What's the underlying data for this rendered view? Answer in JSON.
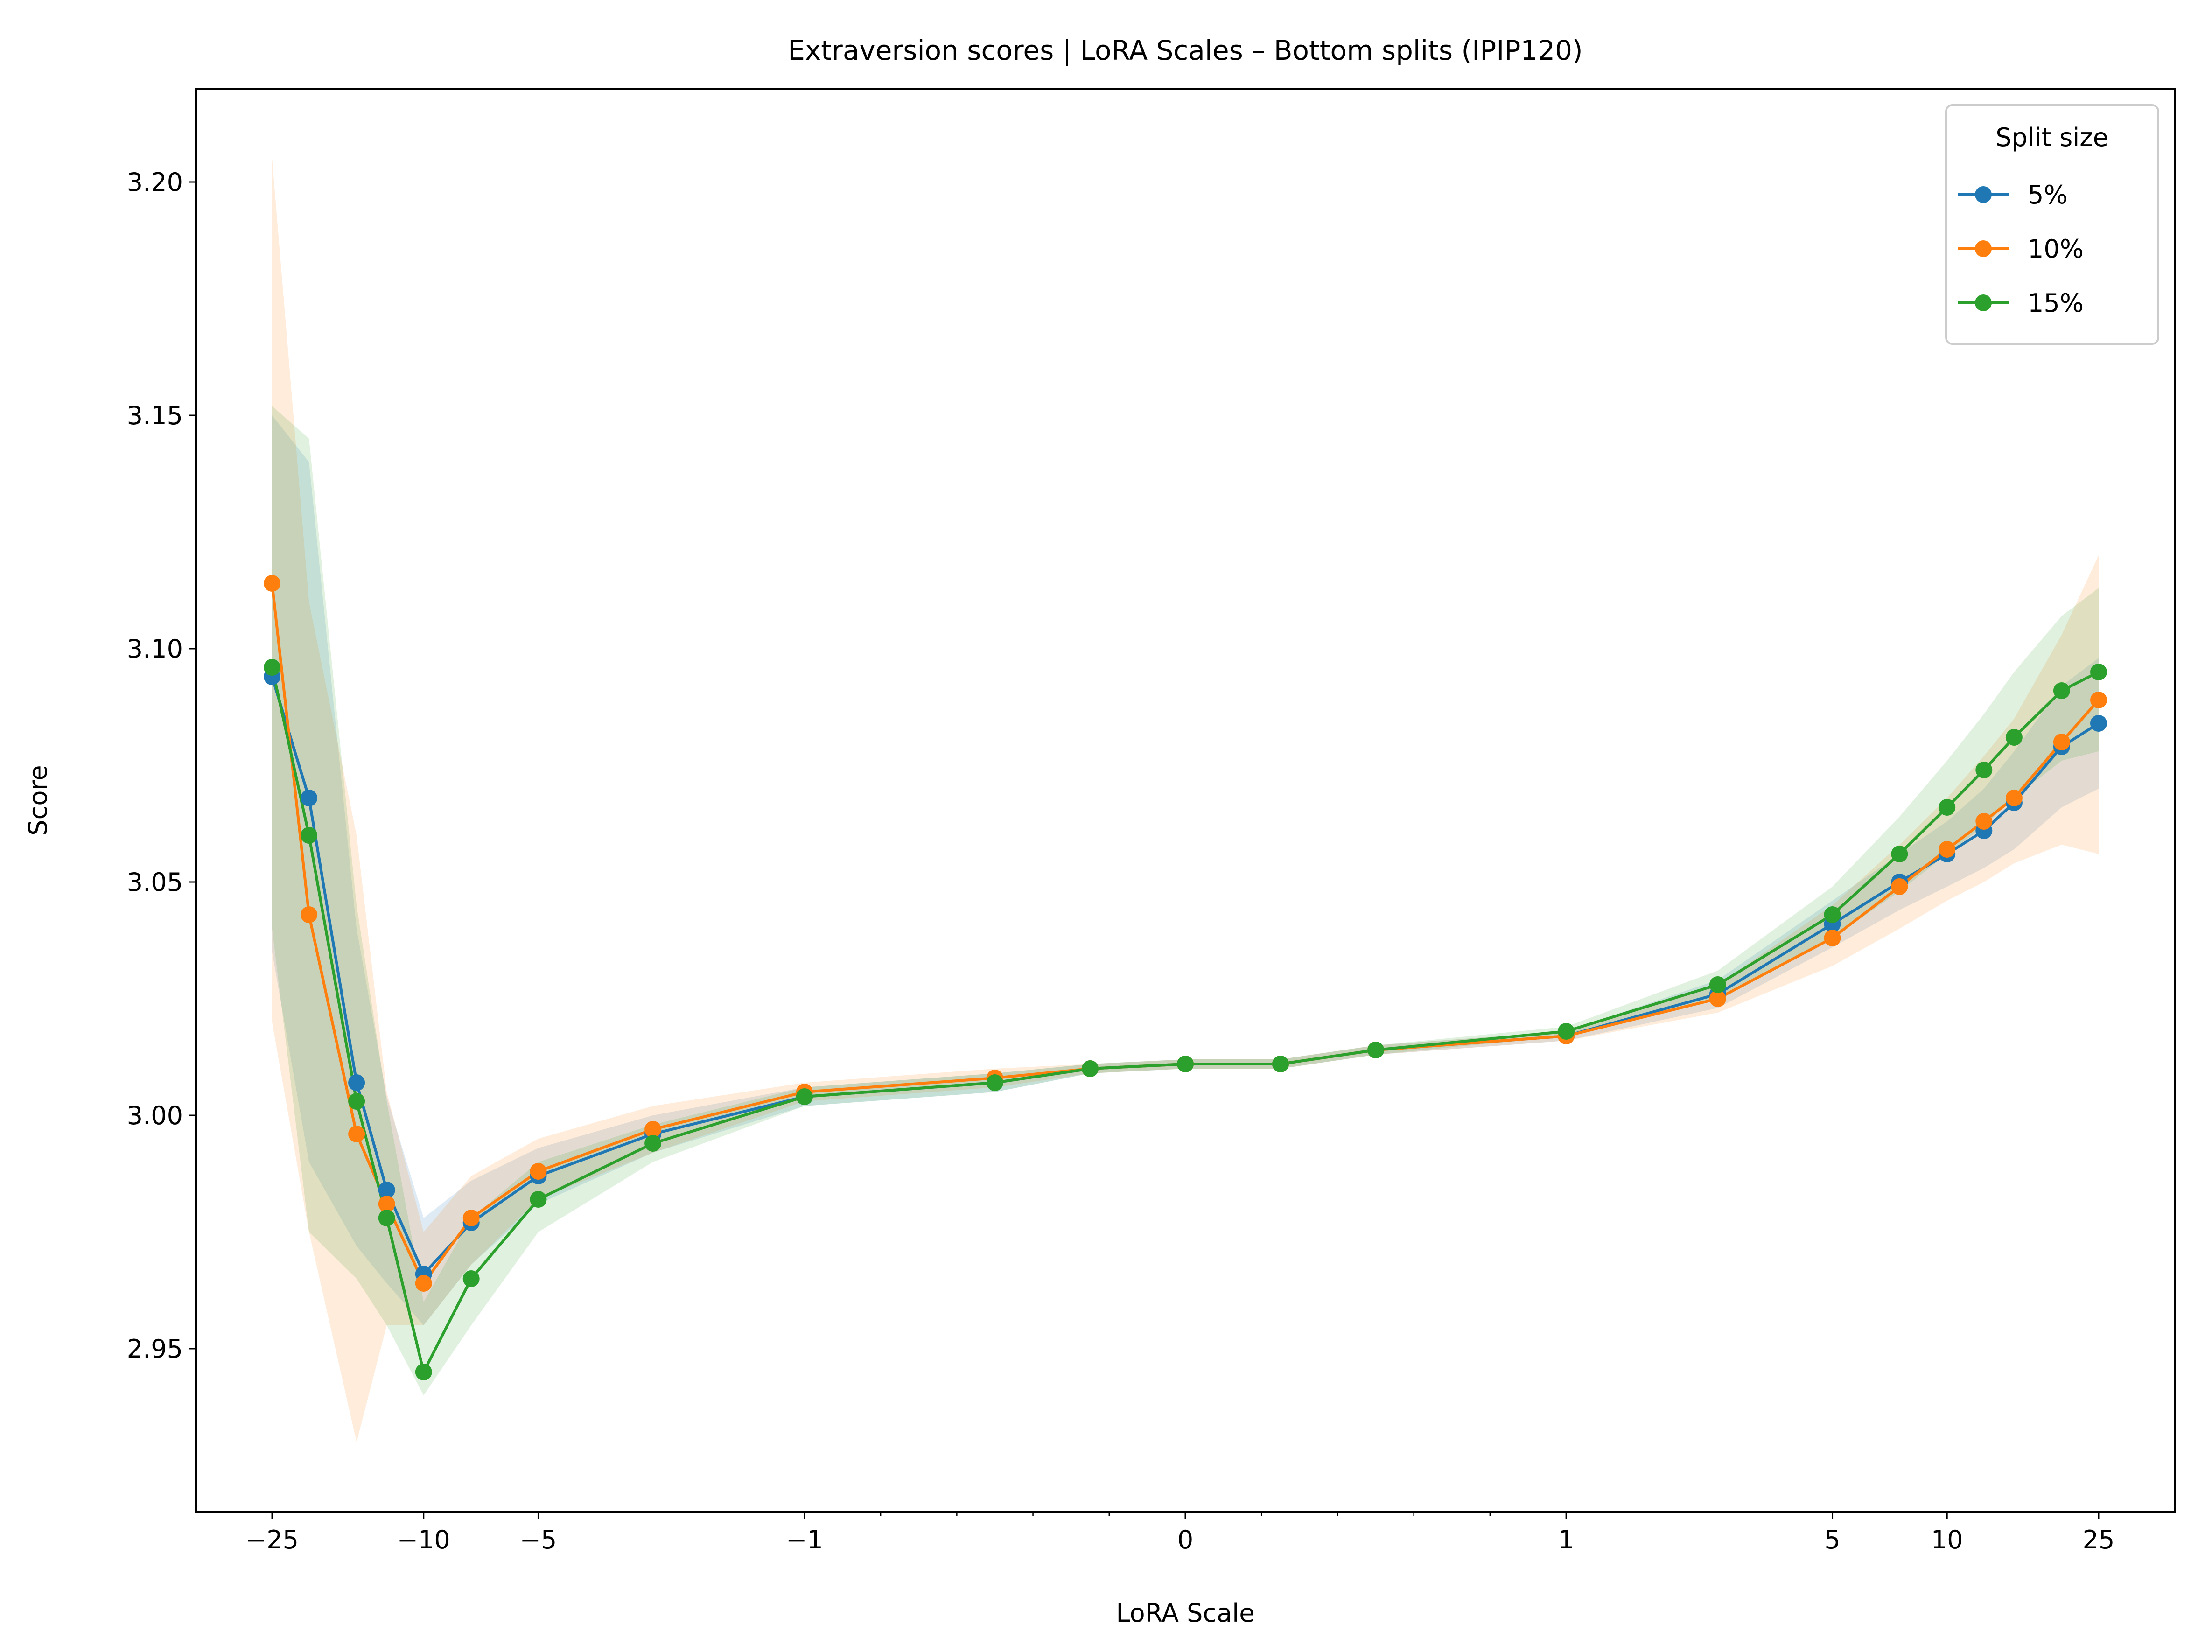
{
  "chart_data": {
    "type": "line",
    "title": "Extraversion scores | LoRA Scales – Bottom splits (IPIP120)",
    "xlabel": "LoRA Scale",
    "ylabel": "Score",
    "x_scale": "symlog",
    "x_linthresh": 1,
    "xlim": [
      -39.6,
      39.6
    ],
    "ylim": [
      2.915,
      3.22
    ],
    "y_ticks": [
      2.95,
      3.0,
      3.05,
      3.1,
      3.15,
      3.2
    ],
    "y_tick_labels": [
      "2.95",
      "3.00",
      "3.05",
      "3.10",
      "3.15",
      "3.20"
    ],
    "x_major_ticks": [
      -25,
      -10,
      -5,
      -1,
      0,
      1,
      5,
      10,
      25
    ],
    "x_major_tick_labels": [
      "−25",
      "−10",
      "−5",
      "−1",
      "0",
      "1",
      "5",
      "10",
      "25"
    ],
    "x_minor_ticks": [
      -0.8,
      -0.6,
      -0.4,
      -0.2,
      0.2,
      0.4,
      0.6,
      0.8
    ],
    "x": [
      -25,
      -20,
      -15,
      -12.5,
      -10,
      -7.5,
      -5,
      -2.5,
      -1,
      -0.5,
      -0.25,
      0,
      0.25,
      0.5,
      1,
      2.5,
      5,
      7.5,
      10,
      12.5,
      15,
      20,
      25
    ],
    "legend": {
      "title": "Split size",
      "position": "upper-right"
    },
    "series": [
      {
        "name": "5%",
        "color": "#1f77b4",
        "values": [
          3.094,
          3.068,
          3.007,
          2.984,
          2.966,
          2.977,
          2.987,
          2.996,
          3.004,
          3.007,
          3.01,
          3.011,
          3.011,
          3.014,
          3.017,
          3.026,
          3.041,
          3.05,
          3.056,
          3.061,
          3.067,
          3.079,
          3.084
        ],
        "lower": [
          3.035,
          2.99,
          2.972,
          2.964,
          2.955,
          2.968,
          2.981,
          2.992,
          3.002,
          3.005,
          3.009,
          3.01,
          3.01,
          3.013,
          3.016,
          3.023,
          3.036,
          3.044,
          3.049,
          3.053,
          3.057,
          3.066,
          3.07
        ],
        "upper": [
          3.15,
          3.14,
          3.04,
          3.004,
          2.978,
          2.986,
          2.993,
          3.0,
          3.006,
          3.009,
          3.011,
          3.012,
          3.012,
          3.015,
          3.018,
          3.029,
          3.046,
          3.056,
          3.063,
          3.07,
          3.078,
          3.092,
          3.098
        ]
      },
      {
        "name": "10%",
        "color": "#ff7f0e",
        "values": [
          3.114,
          3.043,
          2.996,
          2.981,
          2.964,
          2.978,
          2.988,
          2.997,
          3.005,
          3.008,
          3.01,
          3.011,
          3.011,
          3.014,
          3.017,
          3.025,
          3.038,
          3.049,
          3.057,
          3.063,
          3.068,
          3.08,
          3.089
        ],
        "lower": [
          3.02,
          2.975,
          2.93,
          2.955,
          2.955,
          2.968,
          2.982,
          2.992,
          3.003,
          3.006,
          3.009,
          3.01,
          3.01,
          3.013,
          3.016,
          3.022,
          3.032,
          3.04,
          3.046,
          3.05,
          3.054,
          3.058,
          3.056
        ],
        "upper": [
          3.205,
          3.11,
          3.06,
          3.005,
          2.975,
          2.987,
          2.995,
          3.002,
          3.007,
          3.01,
          3.011,
          3.012,
          3.012,
          3.015,
          3.018,
          3.028,
          3.045,
          3.058,
          3.068,
          3.077,
          3.085,
          3.103,
          3.12
        ]
      },
      {
        "name": "15%",
        "color": "#2ca02c",
        "values": [
          3.096,
          3.06,
          3.003,
          2.978,
          2.945,
          2.965,
          2.982,
          2.994,
          3.004,
          3.007,
          3.01,
          3.011,
          3.011,
          3.014,
          3.018,
          3.028,
          3.043,
          3.056,
          3.066,
          3.074,
          3.081,
          3.091,
          3.095
        ],
        "lower": [
          3.04,
          2.975,
          2.965,
          2.955,
          2.94,
          2.955,
          2.975,
          2.99,
          3.002,
          3.005,
          3.009,
          3.01,
          3.01,
          3.013,
          3.017,
          3.025,
          3.038,
          3.048,
          3.056,
          3.062,
          3.068,
          3.076,
          3.078
        ],
        "upper": [
          3.152,
          3.145,
          3.045,
          3.003,
          2.96,
          2.978,
          2.99,
          2.998,
          3.006,
          3.009,
          3.011,
          3.012,
          3.012,
          3.015,
          3.019,
          3.031,
          3.049,
          3.064,
          3.076,
          3.086,
          3.095,
          3.107,
          3.113
        ]
      }
    ]
  }
}
